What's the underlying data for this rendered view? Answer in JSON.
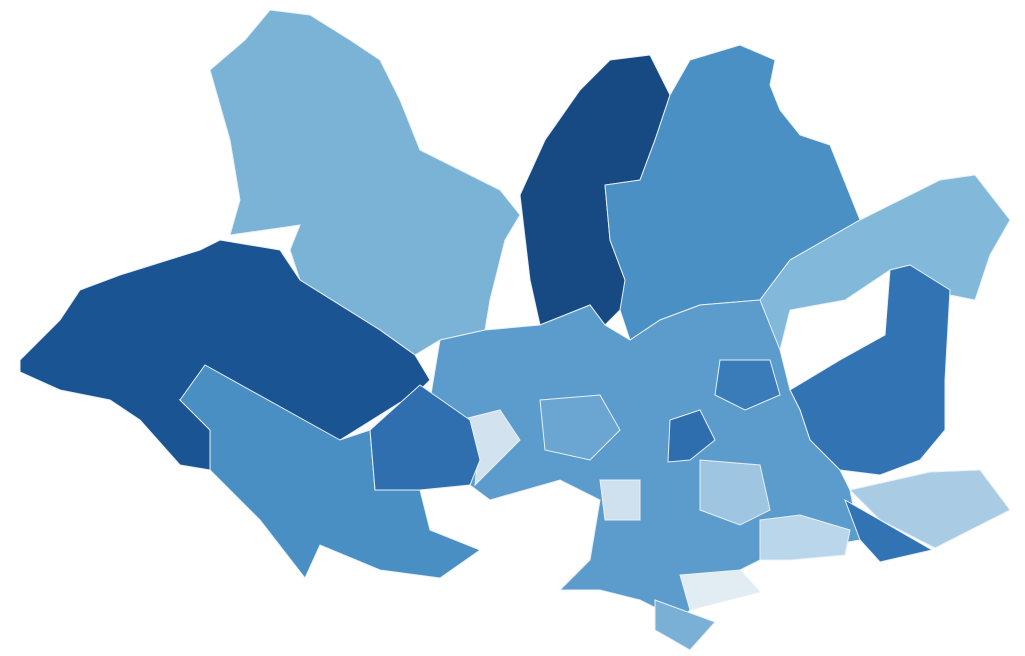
{
  "map": {
    "type": "choropleth",
    "background": "#ffffff",
    "border_color": "#e8f0f7",
    "region_colors": [
      "#7bb3d6",
      "#1a5493",
      "#4a8fc3",
      "#174a83",
      "#4a90c4",
      "#82b8d9",
      "#3274b3",
      "#5b9ccc",
      "#d2e3ef",
      "#a9cce4",
      "#2f6fb0",
      "#3274b3",
      "#e2ecf3",
      "#7ab0d6",
      "#2e6dae",
      "#9ec5e1",
      "#6aa6d1",
      "#3a7cb9",
      "#b9d6ea",
      "#cfe1ee"
    ]
  }
}
